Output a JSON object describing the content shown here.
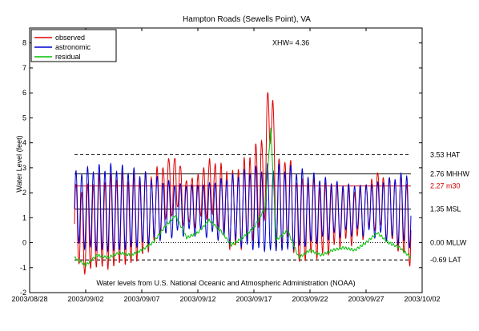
{
  "chart_data": {
    "type": "line",
    "title": "Hampton Roads (Sewells Point), VA",
    "ylabel": "Water Level (feet)",
    "xlabel": "",
    "ylim": [
      -2,
      8.6
    ],
    "xlim": [
      "2003-08-28",
      "2003-10-02"
    ],
    "yticks": [
      -2,
      -1,
      0,
      1,
      2,
      3,
      4,
      5,
      6,
      7,
      8
    ],
    "xticks": [
      "2003/08/28",
      "2003/09/02",
      "2003/09/07",
      "2003/09/12",
      "2003/09/17",
      "2003/09/22",
      "2003/09/27",
      "2003/10/02"
    ],
    "grid": false,
    "legend_position": "top-left",
    "data_start": "2003-09-01",
    "data_end": "2003-10-01",
    "series": [
      {
        "name": "observed",
        "color": "#e00000",
        "tidal_amplitude_ft": 1.4,
        "approx_residual_added": true
      },
      {
        "name": "astronomic",
        "color": "#0000d0",
        "tidal_amplitude_ft": 1.3
      },
      {
        "name": "residual",
        "color": "#00c000",
        "points": [
          {
            "x": "2003-09-01",
            "y": -0.6
          },
          {
            "x": "2003-09-02",
            "y": -0.9
          },
          {
            "x": "2003-09-03",
            "y": -0.5
          },
          {
            "x": "2003-09-04",
            "y": -0.6
          },
          {
            "x": "2003-09-05",
            "y": -0.4
          },
          {
            "x": "2003-09-06",
            "y": -0.5
          },
          {
            "x": "2003-09-07",
            "y": -0.3
          },
          {
            "x": "2003-09-08",
            "y": 0.0
          },
          {
            "x": "2003-09-09",
            "y": 0.6
          },
          {
            "x": "2003-09-10",
            "y": 1.1
          },
          {
            "x": "2003-09-11",
            "y": 0.2
          },
          {
            "x": "2003-09-12",
            "y": 0.4
          },
          {
            "x": "2003-09-13",
            "y": 0.9
          },
          {
            "x": "2003-09-14",
            "y": 0.5
          },
          {
            "x": "2003-09-15",
            "y": -0.1
          },
          {
            "x": "2003-09-16",
            "y": 0.2
          },
          {
            "x": "2003-09-17",
            "y": 0.6
          },
          {
            "x": "2003-09-18",
            "y": 1.4
          },
          {
            "x": "2003-09-18T12:00",
            "y": 4.6
          },
          {
            "x": "2003-09-19",
            "y": 0.1
          },
          {
            "x": "2003-09-20",
            "y": 0.5
          },
          {
            "x": "2003-09-21",
            "y": -0.6
          },
          {
            "x": "2003-09-22",
            "y": -0.3
          },
          {
            "x": "2003-09-23",
            "y": -0.5
          },
          {
            "x": "2003-09-24",
            "y": -0.3
          },
          {
            "x": "2003-09-25",
            "y": -0.2
          },
          {
            "x": "2003-09-26",
            "y": -0.3
          },
          {
            "x": "2003-09-27",
            "y": 0.0
          },
          {
            "x": "2003-09-28",
            "y": 0.4
          },
          {
            "x": "2003-09-29",
            "y": 0.0
          },
          {
            "x": "2003-09-30",
            "y": -0.2
          },
          {
            "x": "2003-10-01",
            "y": -0.6
          }
        ]
      }
    ],
    "reference_lines": [
      {
        "label": "3.53 HAT",
        "value": 3.53,
        "style": "dashed",
        "color": "#000000",
        "label_color": "#000000"
      },
      {
        "label": "2.76 MHHW",
        "value": 2.76,
        "style": "solid",
        "color": "#000000",
        "label_color": "#000000"
      },
      {
        "label": "2.27 m30",
        "value": 2.27,
        "style": "solid",
        "color": "#d00000",
        "label_color": "#d00000"
      },
      {
        "label": "1.35 MSL",
        "value": 1.35,
        "style": "solid",
        "color": "#000000",
        "label_color": "#000000"
      },
      {
        "label": "0.00 MLLW",
        "value": 0.0,
        "style": "dotted",
        "color": "#000000",
        "label_color": "#000000"
      },
      {
        "label": "-0.69 LAT",
        "value": -0.69,
        "style": "dashed",
        "color": "#000000",
        "label_color": "#000000"
      }
    ],
    "annotations": [
      {
        "text": "XHW= 4.36",
        "x": "2003-09-18T12:00",
        "y": 8.0
      },
      {
        "text": "Water levels from U.S. National Oceanic and Atmospheric Administration (NOAA)",
        "position": "bottom-inside"
      }
    ]
  }
}
